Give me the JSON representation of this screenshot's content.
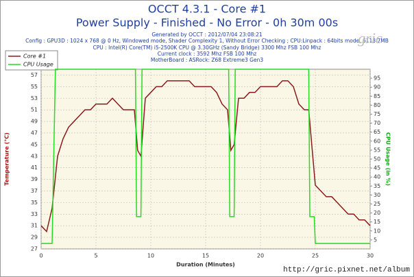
{
  "chart_data": {
    "type": "line",
    "title": "OCCT 4.3.1 - Core #1",
    "subtitle": "Power Supply - Finished - No Error - 0h 30m 00s",
    "info": [
      "Generated by OCCT : 2012/07/04 23:08:21",
      "Config : GPU3D : 1024 x 768 @ 0 Hz, Windowed mode, Shader Complexity 1, Without Error Checking ; CPU:Linpack : 64bits mode, 6113.7MB",
      "CPU : Intel(R) Core(TM) i5-2500K CPU @ 3.30GHz (Sandy Bridge) 3300 Mhz FSB 100 Mhz",
      "Current clock : 3592 Mhz FSB 100 Mhz",
      "MotherBoard : ASRock: Z68 Extreme3 Gen3"
    ],
    "xlabel": "Duration (Minutes)",
    "ylabel": "Temperature (°C)",
    "y2label": "CPU Usage (in %)",
    "watermark": "gric",
    "url": "http://gric.pixnet.net/album",
    "xlim": [
      0,
      30
    ],
    "xticks": [
      0,
      5,
      10,
      15,
      20,
      25,
      30
    ],
    "ylim": [
      27,
      58
    ],
    "yticks": [
      27,
      29,
      31,
      33,
      35,
      37,
      39,
      41,
      43,
      45,
      47,
      49,
      51,
      53,
      55,
      57
    ],
    "y2lim": [
      0,
      100
    ],
    "y2ticks": [
      5,
      10,
      15,
      20,
      25,
      30,
      35,
      40,
      45,
      50,
      55,
      60,
      65,
      70,
      75,
      80,
      85,
      90,
      95
    ],
    "grid": true,
    "legend": "upper left",
    "series": [
      {
        "name": "Core #1",
        "color": "#8b1a1a",
        "x": [
          0,
          0.5,
          1,
          1.5,
          2,
          2.5,
          3,
          3.5,
          4,
          4.5,
          5,
          5.5,
          6,
          6.5,
          7,
          7.5,
          8,
          8.5,
          8.8,
          9.1,
          9.5,
          10,
          10.5,
          11,
          11.5,
          12,
          12.5,
          13,
          13.5,
          14,
          14.5,
          15,
          15.5,
          16,
          16.5,
          17,
          17.3,
          17.6,
          18,
          18.5,
          19,
          19.5,
          20,
          20.5,
          21,
          21.5,
          22,
          22.5,
          23,
          23.5,
          24,
          24.4,
          25,
          25.5,
          26,
          26.5,
          27,
          27.5,
          28,
          28.5,
          29,
          29.5,
          30
        ],
        "values": [
          31,
          30,
          34,
          43,
          46,
          48,
          49,
          50,
          51,
          51,
          52,
          52,
          52,
          53,
          52,
          51,
          51,
          51,
          44,
          43,
          53,
          54,
          55,
          55,
          56,
          56,
          56,
          56,
          56,
          55,
          55,
          55,
          55,
          54,
          52,
          51,
          44,
          45,
          53,
          53,
          54,
          54,
          55,
          55,
          55,
          55,
          56,
          56,
          55,
          52,
          51,
          51,
          38,
          37,
          36,
          36,
          35,
          34,
          33,
          33,
          32,
          32,
          31
        ]
      },
      {
        "name": "CPU Usage",
        "color": "#22dd22",
        "axis": "y2",
        "x": [
          0,
          1.0,
          1.1,
          1.3,
          8.6,
          8.7,
          9.1,
          9.2,
          17.1,
          17.2,
          17.6,
          17.7,
          24.4,
          24.5,
          24.9,
          25.0,
          30
        ],
        "values": [
          3,
          3,
          35,
          100,
          100,
          18,
          18,
          100,
          100,
          18,
          18,
          100,
          100,
          18,
          18,
          3,
          3
        ]
      }
    ]
  }
}
